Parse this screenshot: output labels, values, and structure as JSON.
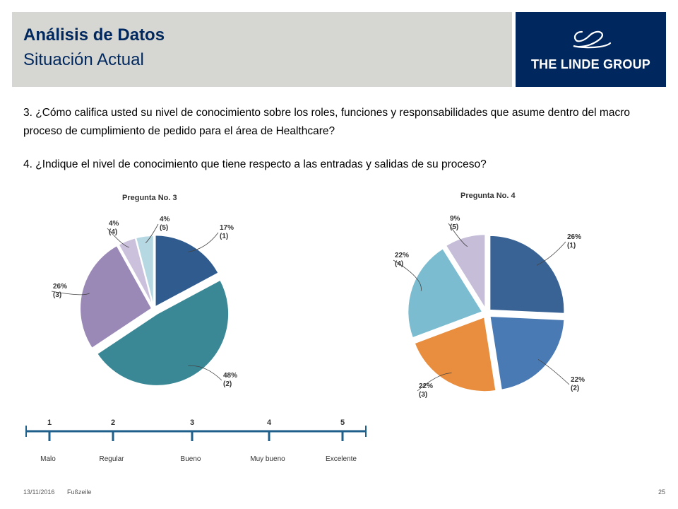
{
  "header": {
    "title": "Análisis de Datos",
    "subtitle": "Situación Actual",
    "logo_text": "THE LINDE GROUP"
  },
  "questions": {
    "q3": "3.  ¿Cómo califica usted su nivel de conocimiento sobre los roles, funciones y responsabilidades que asume dentro del macro proceso de cumplimiento de pedido para el área de Healthcare?",
    "q4": "4. ¿Indique el  nivel de conocimiento  que tiene respecto a las entradas y salidas  de su proceso?"
  },
  "chart_data": [
    {
      "type": "pie",
      "title": "Pregunta No. 3",
      "slices": [
        {
          "label": "(1)",
          "percent_label": "17%",
          "value": 17,
          "color": "#2f5b8e"
        },
        {
          "label": "(2)",
          "percent_label": "48%",
          "value": 48,
          "color": "#3a8896"
        },
        {
          "label": "(3)",
          "percent_label": "26%",
          "value": 26,
          "color": "#9a88b6"
        },
        {
          "label": "(4)",
          "percent_label": "4%",
          "value": 4,
          "color": "#cbc1dc"
        },
        {
          "label": "(5)",
          "percent_label": "4%",
          "value": 4,
          "color": "#b6d8e2"
        }
      ]
    },
    {
      "type": "pie",
      "title": "Pregunta No. 4",
      "slices": [
        {
          "label": "(1)",
          "percent_label": "26%",
          "value": 26,
          "color": "#3a6395"
        },
        {
          "label": "(2)",
          "percent_label": "22%",
          "value": 22,
          "color": "#4a7ab4"
        },
        {
          "label": "(3)",
          "percent_label": "22%",
          "value": 22,
          "color": "#e88e3e"
        },
        {
          "label": "(4)",
          "percent_label": "22%",
          "value": 22,
          "color": "#7bbcd0"
        },
        {
          "label": "(5)",
          "percent_label": "9%",
          "value": 9,
          "color": "#c6bdd9"
        }
      ]
    }
  ],
  "scale": {
    "points": [
      {
        "number": "1",
        "label": "Malo"
      },
      {
        "number": "2",
        "label": "Regular"
      },
      {
        "number": "3",
        "label": "Bueno"
      },
      {
        "number": "4",
        "label": "Muy bueno"
      },
      {
        "number": "5",
        "label": "Excelente"
      }
    ],
    "color": "#1f5f8b"
  },
  "footer": {
    "date": "13/11/2016",
    "label": "Fußzeile",
    "page": "25"
  }
}
